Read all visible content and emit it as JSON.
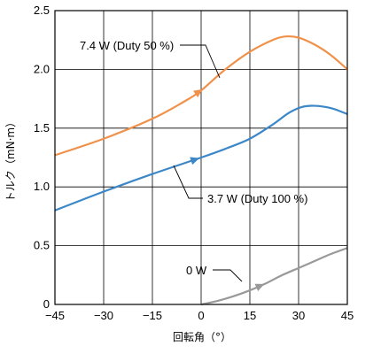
{
  "chart_data": {
    "type": "line",
    "xlabel": "回転角（°）",
    "ylabel": "トルク（mN·m）",
    "xlim": [
      -45,
      45
    ],
    "ylim": [
      0,
      2.5
    ],
    "xticks": [
      -45,
      -30,
      -15,
      0,
      15,
      30,
      45
    ],
    "xtick_labels": [
      "−45",
      "−30",
      "−15",
      "0",
      "15",
      "30",
      "45"
    ],
    "yticks": [
      0,
      0.5,
      1.0,
      1.5,
      2.0,
      2.5
    ],
    "ytick_labels": [
      "0",
      "0.5",
      "1.0",
      "1.5",
      "2.0",
      "2.5"
    ],
    "grid": true,
    "series": [
      {
        "name": "7.4 W (Duty 50 %)",
        "color": "#f0914a",
        "x": [
          -45,
          -30,
          -15,
          -5,
          0,
          7,
          15,
          22,
          26,
          30,
          35,
          40,
          45
        ],
        "y": [
          1.27,
          1.41,
          1.58,
          1.73,
          1.82,
          1.99,
          2.15,
          2.25,
          2.28,
          2.27,
          2.21,
          2.12,
          2.0
        ]
      },
      {
        "name": "3.7 W (Duty 100 %)",
        "color": "#3c87c7",
        "x": [
          -45,
          -30,
          -15,
          0,
          8,
          15,
          22,
          27,
          31,
          35,
          40,
          45
        ],
        "y": [
          0.8,
          0.96,
          1.11,
          1.25,
          1.33,
          1.41,
          1.53,
          1.63,
          1.68,
          1.69,
          1.67,
          1.62
        ]
      },
      {
        "name": "0 W",
        "color": "#999999",
        "x": [
          0,
          5,
          10,
          15,
          20,
          25,
          30,
          35,
          40,
          45
        ],
        "y": [
          0.0,
          0.03,
          0.07,
          0.12,
          0.18,
          0.25,
          0.31,
          0.37,
          0.43,
          0.48
        ]
      }
    ],
    "annotations": [
      {
        "text": "7.4 W (Duty 50 %)",
        "series": 0
      },
      {
        "text": "3.7 W (Duty 100 %)",
        "series": 1
      },
      {
        "text": "0 W",
        "series": 2
      }
    ]
  }
}
